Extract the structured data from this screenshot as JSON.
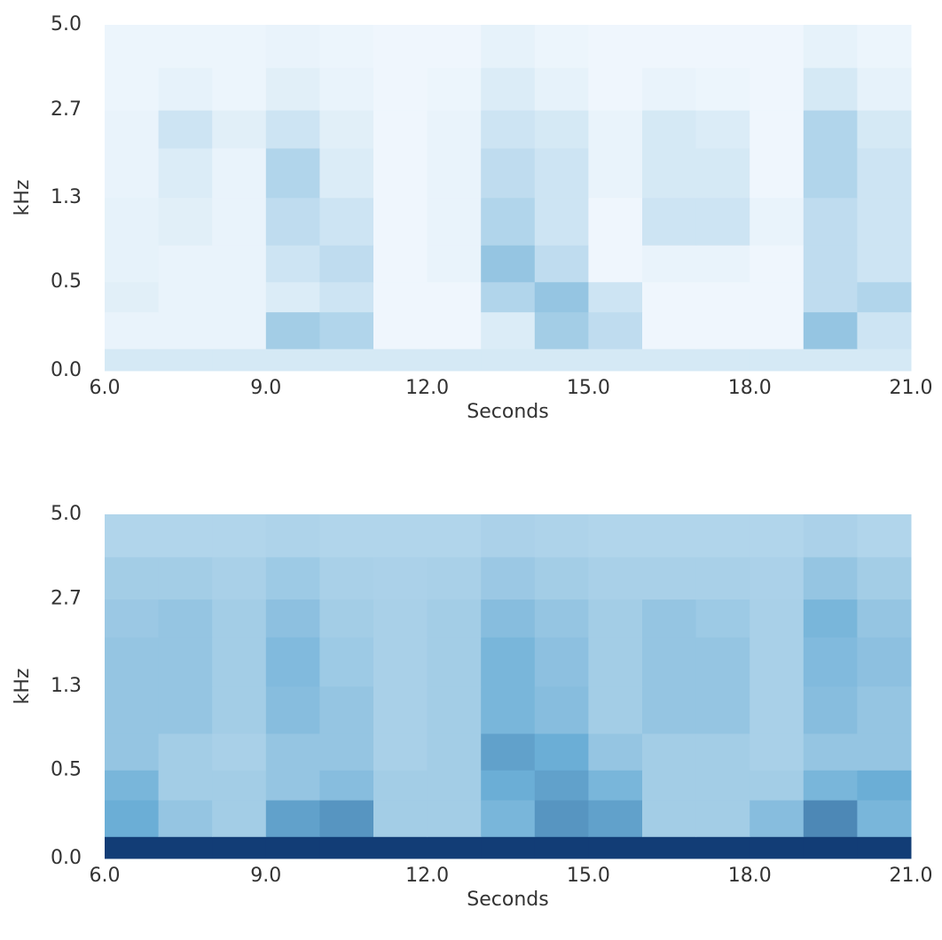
{
  "chart_data": [
    {
      "type": "heatmap",
      "xlabel": "Seconds",
      "ylabel": "kHz",
      "yscale": "mel",
      "xlim": [
        6,
        21
      ],
      "ylim": [
        0,
        5
      ],
      "xticks": [
        {
          "value": 6,
          "label": "6.0"
        },
        {
          "value": 9,
          "label": "9.0"
        },
        {
          "value": 12,
          "label": "12.0"
        },
        {
          "value": 15,
          "label": "15.0"
        },
        {
          "value": 18,
          "label": "18.0"
        },
        {
          "value": 21,
          "label": "21.0"
        }
      ],
      "yticks": [
        {
          "value": 0,
          "label": "0.0"
        },
        0.5,
        1.3,
        2.7,
        {
          "value": 5,
          "label": "5.0"
        }
      ],
      "colors": [
        "#f7fbff",
        "#6baed6",
        "#08306b"
      ],
      "xbins": [
        6,
        7,
        8,
        9,
        10,
        11,
        12,
        13,
        14,
        15,
        16,
        17,
        18,
        19,
        20,
        21
      ],
      "ybins": [
        0,
        0.1,
        0.3,
        0.5,
        0.8,
        1.3,
        2,
        2.7,
        3.7,
        5
      ],
      "z": [
        [
          0.12,
          0.12,
          0.12,
          0.12,
          0.12,
          0.12,
          0.12,
          0.12,
          0.12,
          0.12,
          0.12,
          0.12,
          0.12,
          0.12,
          0.12
        ],
        [
          0.05,
          0.05,
          0.05,
          0.3,
          0.25,
          0.03,
          0.03,
          0.1,
          0.3,
          0.2,
          0.03,
          0.03,
          0.03,
          0.35,
          0.15
        ],
        [
          0.08,
          0.05,
          0.05,
          0.1,
          0.15,
          0.03,
          0.03,
          0.25,
          0.35,
          0.15,
          0.03,
          0.03,
          0.03,
          0.2,
          0.25
        ],
        [
          0.06,
          0.05,
          0.05,
          0.15,
          0.2,
          0.03,
          0.05,
          0.35,
          0.2,
          0.03,
          0.05,
          0.05,
          0.03,
          0.2,
          0.15
        ],
        [
          0.06,
          0.08,
          0.05,
          0.2,
          0.15,
          0.03,
          0.05,
          0.25,
          0.15,
          0.03,
          0.15,
          0.15,
          0.05,
          0.2,
          0.15
        ],
        [
          0.05,
          0.1,
          0.05,
          0.25,
          0.1,
          0.03,
          0.05,
          0.2,
          0.15,
          0.05,
          0.12,
          0.12,
          0.03,
          0.25,
          0.15
        ],
        [
          0.05,
          0.15,
          0.08,
          0.15,
          0.08,
          0.03,
          0.05,
          0.15,
          0.12,
          0.05,
          0.12,
          0.1,
          0.03,
          0.25,
          0.12
        ],
        [
          0.04,
          0.06,
          0.04,
          0.08,
          0.05,
          0.03,
          0.04,
          0.1,
          0.06,
          0.03,
          0.05,
          0.04,
          0.03,
          0.12,
          0.06
        ],
        [
          0.04,
          0.04,
          0.04,
          0.05,
          0.04,
          0.03,
          0.03,
          0.06,
          0.04,
          0.03,
          0.03,
          0.03,
          0.03,
          0.06,
          0.04
        ]
      ]
    },
    {
      "type": "heatmap",
      "xlabel": "Seconds",
      "ylabel": "kHz",
      "yscale": "mel",
      "xlim": [
        6,
        21
      ],
      "ylim": [
        0,
        5
      ],
      "xticks": [
        {
          "value": 6,
          "label": "6.0"
        },
        {
          "value": 9,
          "label": "9.0"
        },
        {
          "value": 12,
          "label": "12.0"
        },
        {
          "value": 15,
          "label": "15.0"
        },
        {
          "value": 18,
          "label": "18.0"
        },
        {
          "value": 21,
          "label": "21.0"
        }
      ],
      "yticks": [
        {
          "value": 0,
          "label": "0.0"
        },
        0.5,
        1.3,
        2.7,
        {
          "value": 5,
          "label": "5.0"
        }
      ],
      "colors": [
        "#f7fbff",
        "#6baed6",
        "#08306b"
      ],
      "xbins": [
        6,
        7,
        8,
        9,
        10,
        11,
        12,
        13,
        14,
        15,
        16,
        17,
        18,
        19,
        20,
        21
      ],
      "ybins": [
        0,
        0.1,
        0.3,
        0.5,
        0.8,
        1.3,
        2,
        2.7,
        3.7,
        5
      ],
      "z": [
        [
          0.95,
          0.95,
          0.95,
          0.95,
          0.95,
          0.95,
          0.95,
          0.95,
          0.95,
          0.95,
          0.95,
          0.95,
          0.95,
          0.95,
          0.95
        ],
        [
          0.5,
          0.35,
          0.3,
          0.55,
          0.6,
          0.3,
          0.3,
          0.45,
          0.6,
          0.55,
          0.3,
          0.3,
          0.4,
          0.65,
          0.45
        ],
        [
          0.45,
          0.3,
          0.3,
          0.35,
          0.4,
          0.3,
          0.3,
          0.5,
          0.55,
          0.45,
          0.3,
          0.3,
          0.3,
          0.45,
          0.5
        ],
        [
          0.35,
          0.3,
          0.28,
          0.35,
          0.35,
          0.28,
          0.3,
          0.55,
          0.5,
          0.35,
          0.3,
          0.3,
          0.28,
          0.35,
          0.35
        ],
        [
          0.35,
          0.35,
          0.3,
          0.4,
          0.35,
          0.28,
          0.3,
          0.45,
          0.4,
          0.3,
          0.35,
          0.35,
          0.28,
          0.4,
          0.35
        ],
        [
          0.35,
          0.35,
          0.3,
          0.42,
          0.32,
          0.28,
          0.3,
          0.45,
          0.38,
          0.3,
          0.35,
          0.35,
          0.28,
          0.42,
          0.38
        ],
        [
          0.33,
          0.35,
          0.3,
          0.38,
          0.3,
          0.28,
          0.3,
          0.4,
          0.35,
          0.3,
          0.35,
          0.32,
          0.28,
          0.45,
          0.35
        ],
        [
          0.3,
          0.3,
          0.28,
          0.32,
          0.28,
          0.27,
          0.28,
          0.33,
          0.3,
          0.28,
          0.28,
          0.28,
          0.27,
          0.35,
          0.3
        ],
        [
          0.25,
          0.25,
          0.25,
          0.26,
          0.25,
          0.25,
          0.25,
          0.27,
          0.26,
          0.25,
          0.25,
          0.25,
          0.25,
          0.27,
          0.25
        ]
      ]
    }
  ]
}
